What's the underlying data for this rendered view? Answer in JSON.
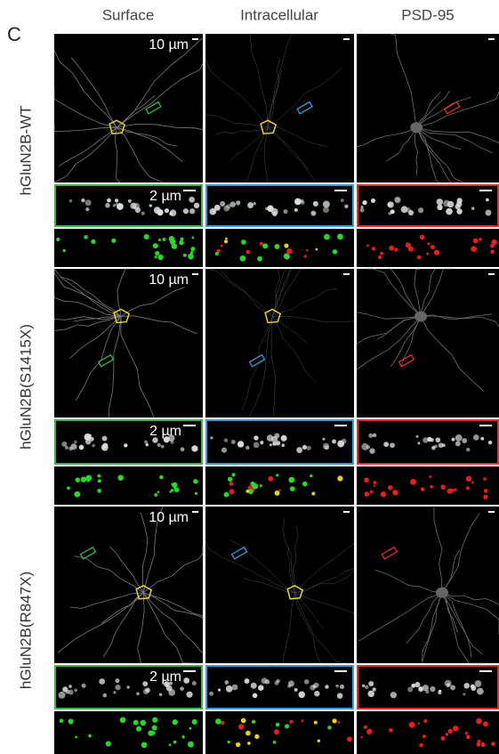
{
  "panel_label": "C",
  "columns": [
    "Surface",
    "Intracellular",
    "PSD-95"
  ],
  "rows": [
    {
      "label": "hGluN2B-WT",
      "scale_overview": "10 µm",
      "scale_zoom": "2 µm"
    },
    {
      "label": "hGluN2B(S1415X)",
      "scale_overview": "10 µm",
      "scale_zoom": "2 µm"
    },
    {
      "label": "hGluN2B(R847X)",
      "scale_overview": "10 µm",
      "scale_zoom": "2 µm"
    }
  ]
}
